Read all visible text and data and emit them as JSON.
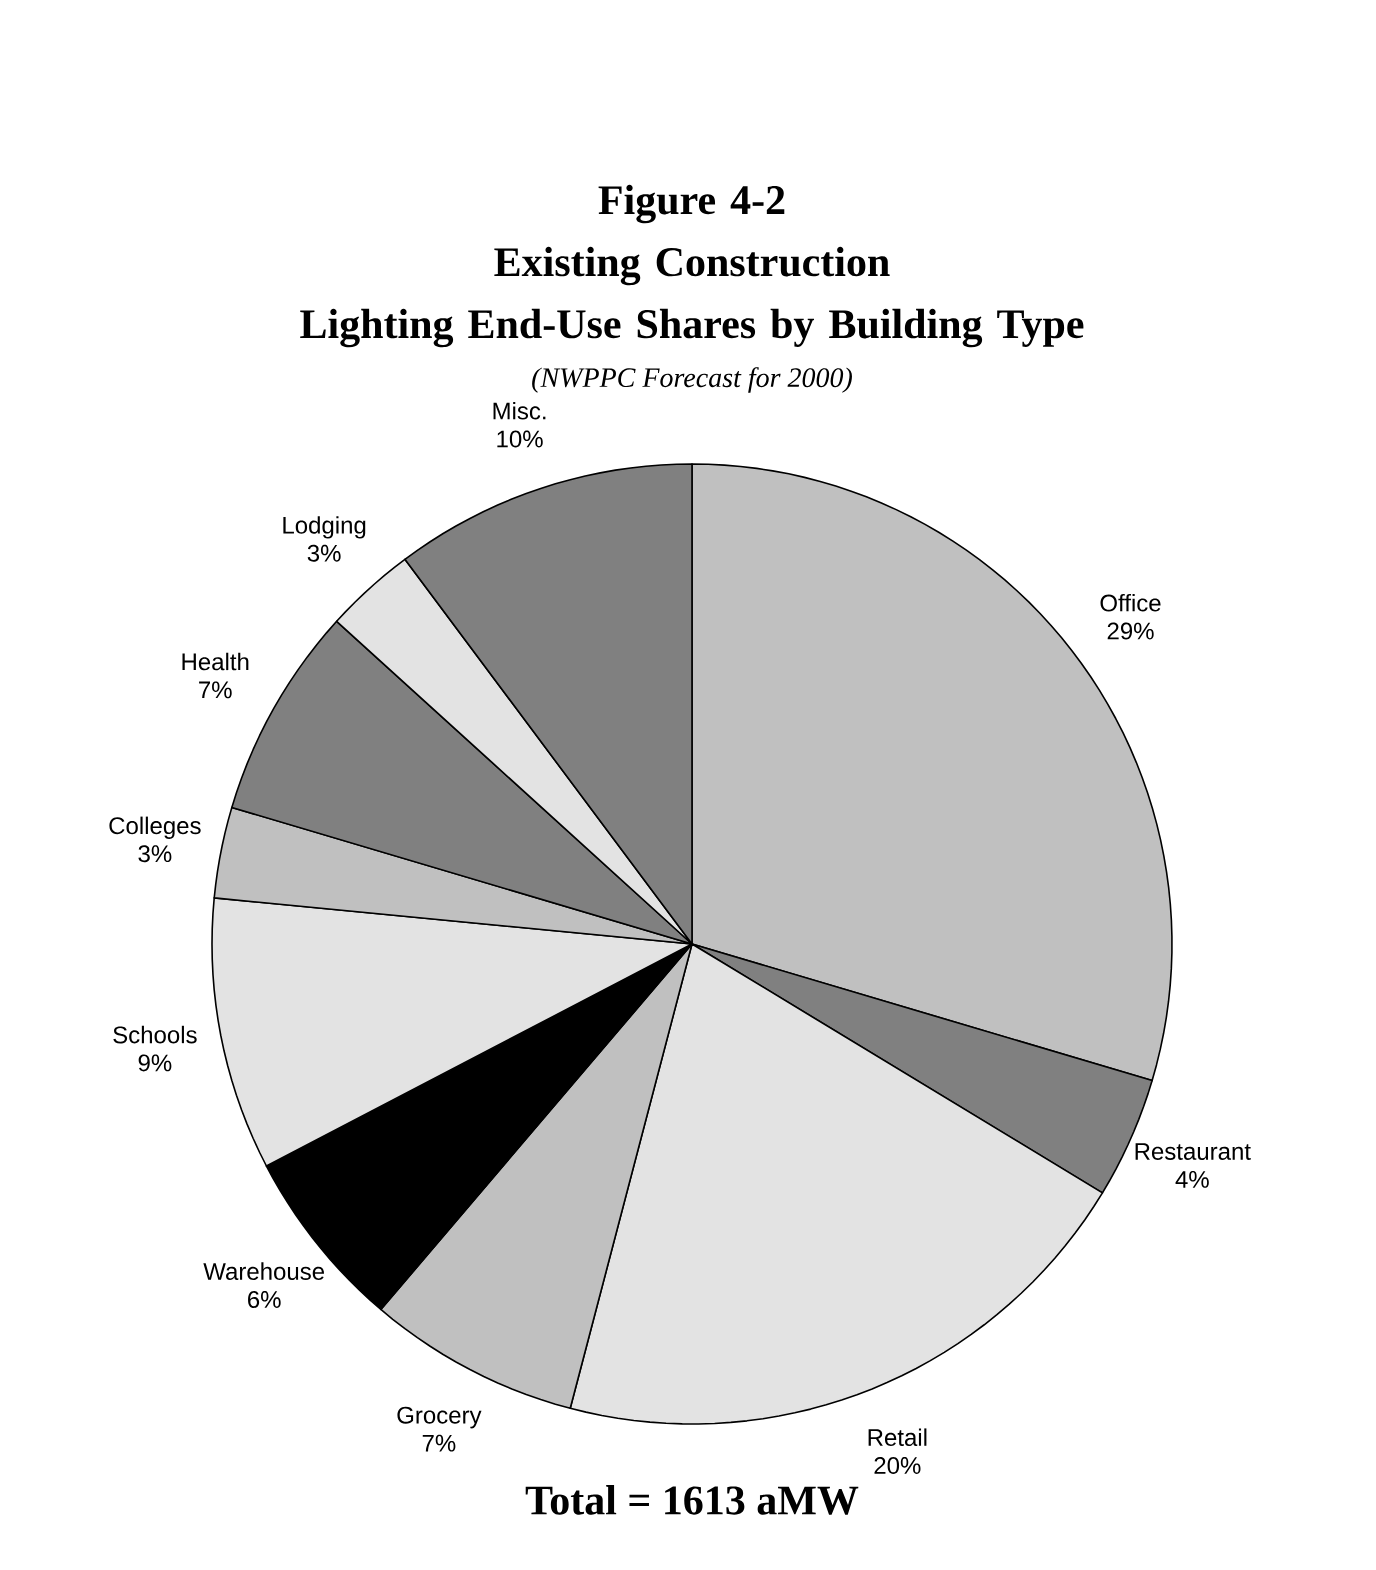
{
  "chart_data": {
    "type": "pie",
    "title": "Figure 4-2\nExisting Construction\nLighting End-Use Shares by Building Type",
    "subtitle": "(NWPPC Forecast for 2000)",
    "categories": [
      "Office",
      "Restaurant",
      "Retail",
      "Grocery",
      "Warehouse",
      "Schools",
      "Colleges",
      "Health",
      "Lodging",
      "Misc."
    ],
    "values": [
      29,
      4,
      20,
      7,
      6,
      9,
      3,
      7,
      3,
      10
    ],
    "value_labels": [
      "29%",
      "4%",
      "20%",
      "7%",
      "6%",
      "9%",
      "3%",
      "7%",
      "3%",
      "10%"
    ],
    "colors": [
      "#c0c0c0",
      "#808080",
      "#e3e3e3",
      "#c0c0c0",
      "#000000",
      "#e3e3e3",
      "#c0c0c0",
      "#808080",
      "#e3e3e3",
      "#808080"
    ],
    "annotations": [
      "Total = 1613 aMW"
    ]
  }
}
